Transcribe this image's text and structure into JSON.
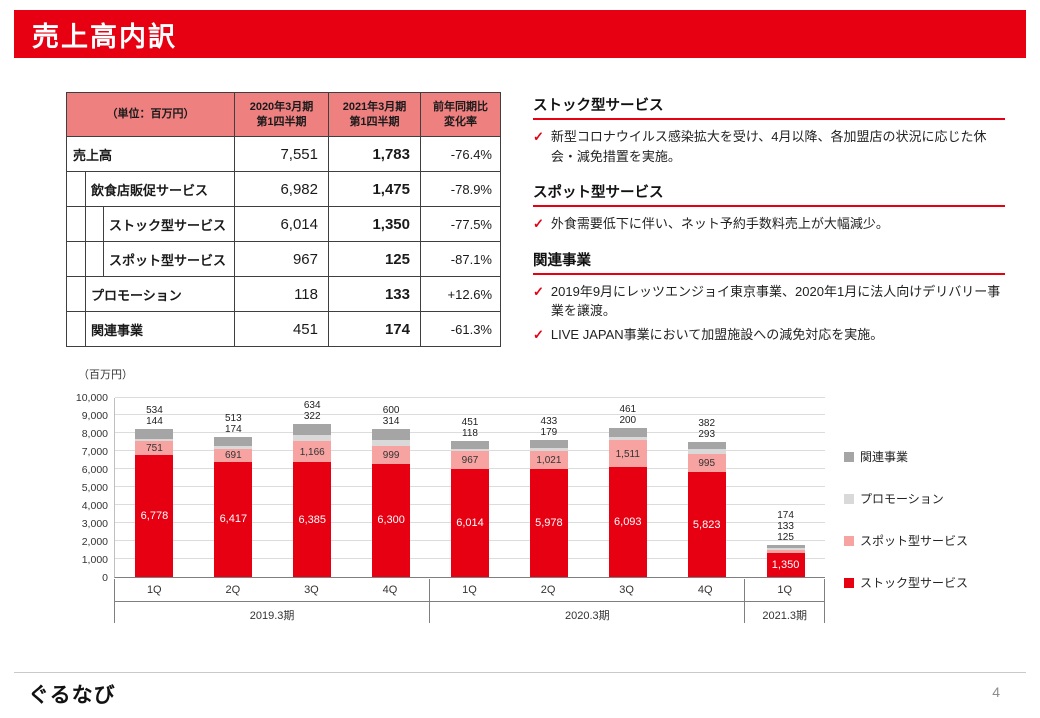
{
  "slide": {
    "title": "売上高内訳",
    "logo": "ぐるなび",
    "page_number": "4"
  },
  "table": {
    "unit_label": "（単位：百万円）",
    "col_headers": [
      "2020年3月期\n第1四半期",
      "2021年3月期\n第1四半期",
      "前年同期比\n変化率"
    ],
    "rows": [
      {
        "label": "売上高",
        "indent": 0,
        "fy2020": "7,551",
        "fy2021": "1,783",
        "change": "-76.4%"
      },
      {
        "label": "飲食店販促サービス",
        "indent": 1,
        "fy2020": "6,982",
        "fy2021": "1,475",
        "change": "-78.9%"
      },
      {
        "label": "ストック型サービス",
        "indent": 2,
        "fy2020": "6,014",
        "fy2021": "1,350",
        "change": "-77.5%"
      },
      {
        "label": "スポット型サービス",
        "indent": 2,
        "fy2020": "967",
        "fy2021": "125",
        "change": "-87.1%"
      },
      {
        "label": "プロモーション",
        "indent": 1,
        "fy2020": "118",
        "fy2021": "133",
        "change": "+12.6%"
      },
      {
        "label": "関連事業",
        "indent": 1,
        "fy2020": "451",
        "fy2021": "174",
        "change": "-61.3%"
      }
    ]
  },
  "notes": [
    {
      "heading": "ストック型サービス",
      "bullets": [
        "新型コロナウイルス感染拡大を受け、4月以降、各加盟店の状況に応じた休会・減免措置を実施。"
      ]
    },
    {
      "heading": "スポット型サービス",
      "bullets": [
        "外食需要低下に伴い、ネット予約手数料売上が大幅減少。"
      ]
    },
    {
      "heading": "関連事業",
      "bullets": [
        "2019年9月にレッツエンジョイ東京事業、2020年1月に法人向けデリバリー事業を譲渡。",
        "LIVE JAPAN事業において加盟施設への減免対応を実施。"
      ]
    }
  ],
  "chart_data": {
    "type": "bar",
    "stacked": true,
    "unit_label": "（百万円）",
    "ylim": [
      0,
      10000
    ],
    "ytick_interval": 1000,
    "grid": true,
    "legend_position": "right",
    "groups": [
      {
        "label": "2019.3期",
        "quarters": [
          "1Q",
          "2Q",
          "3Q",
          "4Q"
        ]
      },
      {
        "label": "2020.3期",
        "quarters": [
          "1Q",
          "2Q",
          "3Q",
          "4Q"
        ]
      },
      {
        "label": "2021.3期",
        "quarters": [
          "1Q"
        ]
      }
    ],
    "series": [
      {
        "name": "ストック型サービス",
        "color": "#e60012",
        "values": [
          6778,
          6417,
          6385,
          6300,
          6014,
          5978,
          6093,
          5823,
          1350
        ]
      },
      {
        "name": "スポット型サービス",
        "color": "#f6a3a1",
        "values": [
          751,
          691,
          1166,
          999,
          967,
          1021,
          1511,
          995,
          125
        ]
      },
      {
        "name": "プロモーション",
        "color": "#d9d9d9",
        "values": [
          144,
          174,
          322,
          314,
          118,
          179,
          200,
          293,
          133
        ]
      },
      {
        "name": "関連事業",
        "color": "#a5a5a5",
        "values": [
          534,
          513,
          634,
          600,
          451,
          433,
          461,
          382,
          174
        ]
      }
    ],
    "legend": [
      "関連事業",
      "プロモーション",
      "スポット型サービス",
      "ストック型サービス"
    ]
  }
}
